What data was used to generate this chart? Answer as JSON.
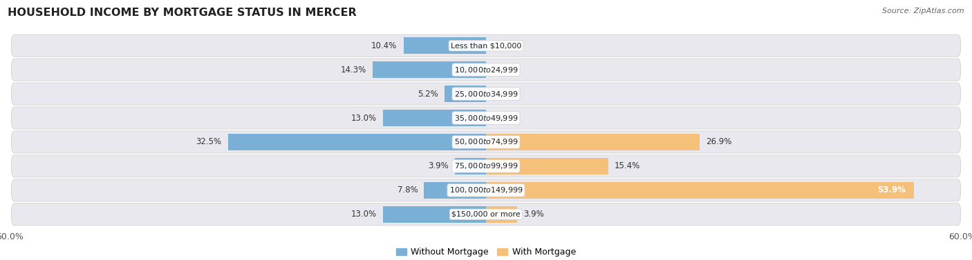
{
  "title": "HOUSEHOLD INCOME BY MORTGAGE STATUS IN MERCER",
  "source": "Source: ZipAtlas.com",
  "categories": [
    "Less than $10,000",
    "$10,000 to $24,999",
    "$25,000 to $34,999",
    "$35,000 to $49,999",
    "$50,000 to $74,999",
    "$75,000 to $99,999",
    "$100,000 to $149,999",
    "$150,000 or more"
  ],
  "without_mortgage": [
    10.4,
    14.3,
    5.2,
    13.0,
    32.5,
    3.9,
    7.8,
    13.0
  ],
  "with_mortgage": [
    0.0,
    0.0,
    0.0,
    0.0,
    26.9,
    15.4,
    53.9,
    3.9
  ],
  "color_without": "#7aafd6",
  "color_with": "#f5c07a",
  "x_min": -60.0,
  "x_max": 60.0,
  "row_bg_color": "#e8e8ee",
  "background_fig_color": "#ffffff",
  "legend_labels": [
    "Without Mortgage",
    "With Mortgage"
  ],
  "title_fontsize": 11.5,
  "source_fontsize": 8,
  "bar_label_fontsize": 8.5,
  "cat_label_fontsize": 8.0
}
